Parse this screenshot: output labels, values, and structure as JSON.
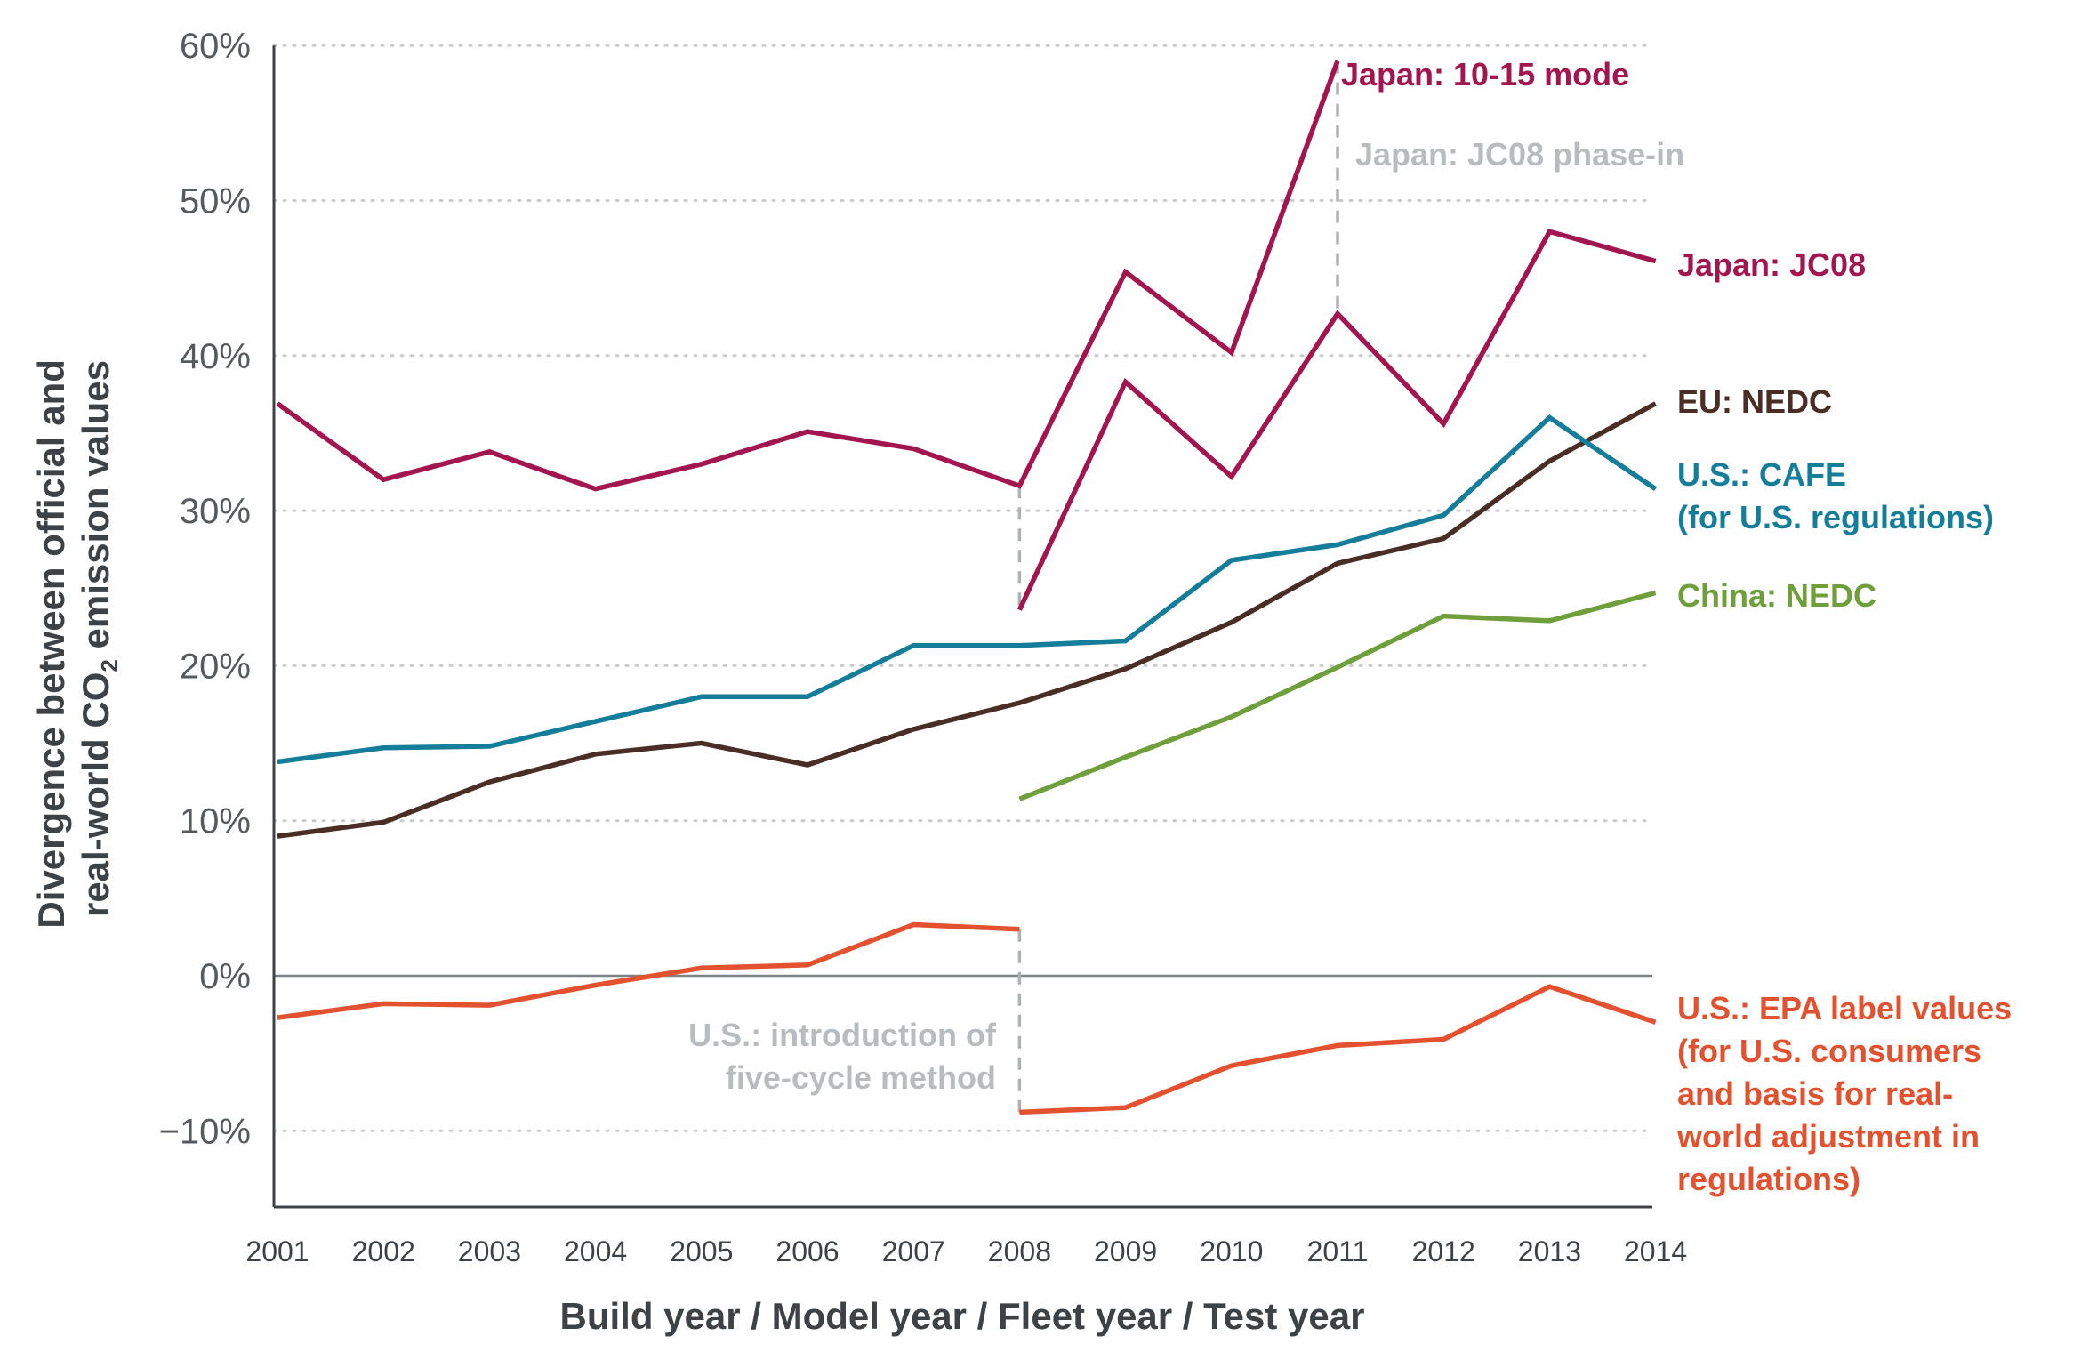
{
  "chart_data": {
    "type": "line",
    "title": "",
    "xlabel": "Build year / Model year / Fleet year / Test year",
    "ylabel_line1": "Divergence between official and",
    "ylabel_line2_pre": "real-world CO",
    "ylabel_line2_sub": "2",
    "ylabel_line2_post": " emission values",
    "x": [
      2001,
      2002,
      2003,
      2004,
      2005,
      2006,
      2007,
      2008,
      2009,
      2010,
      2011,
      2012,
      2013,
      2014
    ],
    "x_tick_labels": [
      "2001",
      "2002",
      "2003",
      "2004",
      "2005",
      "2006",
      "2007",
      "2008",
      "2009",
      "2010",
      "2011",
      "2012",
      "2013",
      "2014"
    ],
    "ylim": [
      -15,
      60
    ],
    "y_ticks": [
      60,
      50,
      40,
      30,
      20,
      10,
      0,
      -10
    ],
    "y_tick_labels": [
      "60%",
      "50%",
      "40%",
      "30%",
      "20%",
      "10%",
      "0%",
      "−10%"
    ],
    "grid": "dotted-horizontal",
    "series": [
      {
        "name": "japan-10-15",
        "color": "#a3154f",
        "label_lines": [
          "Japan: 10-15 mode"
        ],
        "points": [
          [
            2001,
            36.9
          ],
          [
            2002,
            32.0
          ],
          [
            2003,
            33.8
          ],
          [
            2004,
            31.4
          ],
          [
            2005,
            33.0
          ],
          [
            2006,
            35.1
          ],
          [
            2007,
            34.0
          ],
          [
            2008,
            31.6
          ],
          [
            2009,
            45.4
          ],
          [
            2010,
            40.2
          ],
          [
            2011,
            59.0
          ]
        ]
      },
      {
        "name": "japan-jc08",
        "color": "#a3154f",
        "label_lines": [
          "Japan: JC08"
        ],
        "points": [
          [
            2008,
            23.6
          ],
          [
            2009,
            38.3
          ],
          [
            2010,
            32.2
          ],
          [
            2011,
            42.7
          ],
          [
            2012,
            35.6
          ],
          [
            2013,
            48.0
          ],
          [
            2014,
            46.1
          ]
        ]
      },
      {
        "name": "eu-nedc",
        "color": "#4a2e25",
        "label_lines": [
          "EU: NEDC"
        ],
        "points": [
          [
            2001,
            9.0
          ],
          [
            2002,
            9.9
          ],
          [
            2003,
            12.5
          ],
          [
            2004,
            14.3
          ],
          [
            2005,
            15.0
          ],
          [
            2006,
            13.6
          ],
          [
            2007,
            15.9
          ],
          [
            2008,
            17.6
          ],
          [
            2009,
            19.8
          ],
          [
            2010,
            22.8
          ],
          [
            2011,
            26.6
          ],
          [
            2012,
            28.2
          ],
          [
            2013,
            33.2
          ],
          [
            2014,
            36.9
          ]
        ]
      },
      {
        "name": "us-cafe",
        "color": "#147d99",
        "label_lines": [
          "U.S.: CAFE",
          "(for U.S. regulations)"
        ],
        "points": [
          [
            2001,
            13.8
          ],
          [
            2002,
            14.7
          ],
          [
            2003,
            14.8
          ],
          [
            2004,
            16.4
          ],
          [
            2005,
            18.0
          ],
          [
            2006,
            18.0
          ],
          [
            2007,
            21.3
          ],
          [
            2008,
            21.3
          ],
          [
            2009,
            21.6
          ],
          [
            2010,
            26.8
          ],
          [
            2011,
            27.8
          ],
          [
            2012,
            29.7
          ],
          [
            2013,
            36.0
          ],
          [
            2014,
            31.4
          ]
        ]
      },
      {
        "name": "china-nedc",
        "color": "#6f9f3a",
        "label_lines": [
          "China: NEDC"
        ],
        "points": [
          [
            2008,
            11.4
          ],
          [
            2009,
            14.1
          ],
          [
            2010,
            16.7
          ],
          [
            2011,
            19.9
          ],
          [
            2012,
            23.2
          ],
          [
            2013,
            22.9
          ],
          [
            2014,
            24.7
          ]
        ]
      },
      {
        "name": "us-epa-pre",
        "color": "#e3512e",
        "label_lines": [],
        "points": [
          [
            2001,
            -2.7
          ],
          [
            2002,
            -1.8
          ],
          [
            2003,
            -1.9
          ],
          [
            2004,
            -0.6
          ],
          [
            2005,
            0.5
          ],
          [
            2006,
            0.7
          ],
          [
            2007,
            3.3
          ],
          [
            2008,
            3.0
          ]
        ]
      },
      {
        "name": "us-epa-post",
        "color": "#e3512e",
        "label_lines": [
          "U.S.: EPA label values",
          "(for U.S. consumers",
          "and basis for real-",
          "world adjustment in",
          "regulations)"
        ],
        "points": [
          [
            2008,
            -8.8
          ],
          [
            2009,
            -8.5
          ],
          [
            2010,
            -5.8
          ],
          [
            2011,
            -4.5
          ],
          [
            2012,
            -4.1
          ],
          [
            2013,
            -0.7
          ],
          [
            2014,
            -3.0
          ]
        ]
      }
    ],
    "annotations": [
      {
        "name": "jc08-phase-in",
        "x": 2011,
        "y_from": 59.0,
        "y_to": 42.7,
        "label_lines": [
          "Japan: JC08 phase-in"
        ]
      },
      {
        "name": "five-cycle",
        "x": 2008,
        "y_from": 31.6,
        "y_to": 23.6,
        "label_lines": []
      },
      {
        "name": "five-cycle-epa",
        "x": 2008,
        "y_from": 3.0,
        "y_to": -8.8,
        "label_lines": [
          "U.S.: introduction of",
          "five-cycle method"
        ]
      }
    ]
  }
}
